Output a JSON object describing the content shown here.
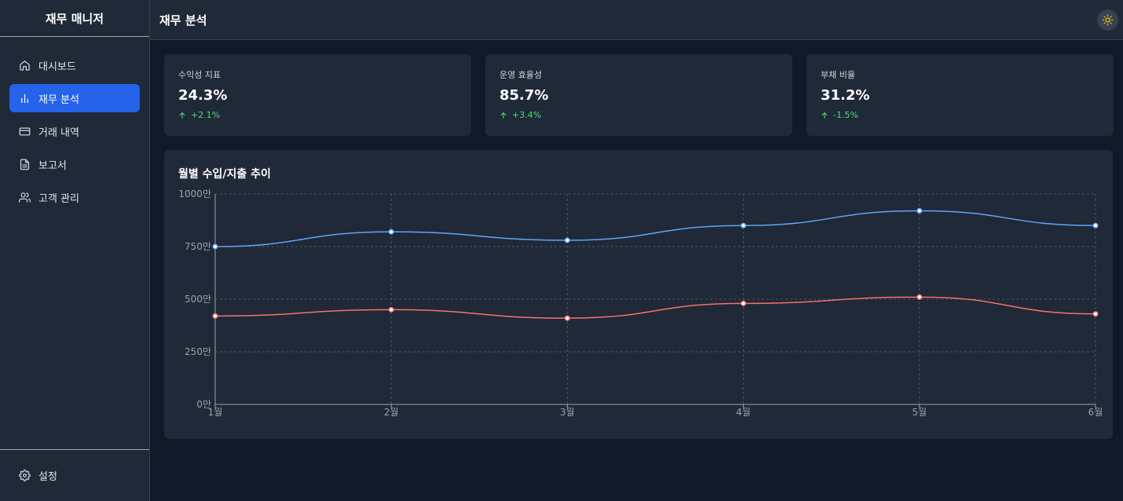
{
  "app": {
    "brand": "재무 매니저"
  },
  "sidebar": {
    "items": [
      {
        "label": "대시보드",
        "icon": "home-icon",
        "active": false
      },
      {
        "label": "재무 분석",
        "icon": "bar-chart-icon",
        "active": true
      },
      {
        "label": "거래 내역",
        "icon": "credit-card-icon",
        "active": false
      },
      {
        "label": "보고서",
        "icon": "file-text-icon",
        "active": false
      },
      {
        "label": "고객 관리",
        "icon": "users-icon",
        "active": false
      }
    ],
    "settings_label": "설정"
  },
  "header": {
    "title": "재무 분석",
    "theme_icon": "sun-icon"
  },
  "cards": [
    {
      "label": "수익성 지표",
      "value": "24.3%",
      "change": "+2.1%"
    },
    {
      "label": "운영 효율성",
      "value": "85.7%",
      "change": "+3.4%"
    },
    {
      "label": "부채 비율",
      "value": "31.2%",
      "change": "-1.5%"
    }
  ],
  "colors": {
    "accent": "#2563eb",
    "positive": "#4ade80",
    "income_line": "#60a5fa",
    "expense_line": "#f87171"
  },
  "chart_data": {
    "type": "line",
    "title": "월별 수입/지출 추이",
    "categories": [
      "1월",
      "2월",
      "3월",
      "4월",
      "5월",
      "6월"
    ],
    "y_ticks": [
      "0만",
      "250만",
      "500만",
      "750만",
      "1000만"
    ],
    "ylim": [
      0,
      1000
    ],
    "grid": true,
    "series": [
      {
        "color": "#60a5fa",
        "values": [
          750,
          820,
          780,
          850,
          920,
          850
        ]
      },
      {
        "color": "#f87171",
        "values": [
          420,
          450,
          410,
          480,
          510,
          430
        ]
      }
    ]
  }
}
